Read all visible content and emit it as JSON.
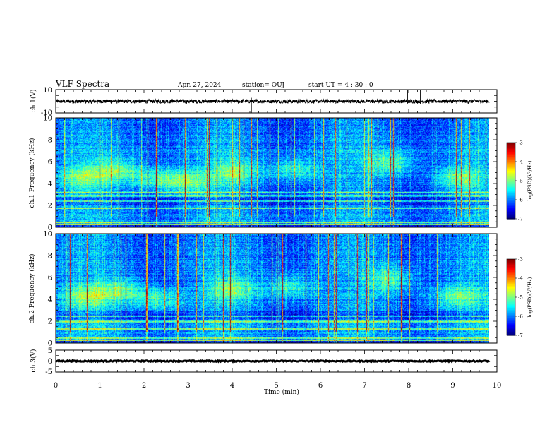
{
  "header": {
    "title": "VLF Spectra",
    "date": "Apr. 27, 2024",
    "station": "station= OUJ",
    "start": "start  UT =   4 : 30 : 0"
  },
  "chart_data": [
    {
      "type": "line",
      "name": "ch1-waveform",
      "ylabel": "ch.1(V)",
      "ylim": [
        -10,
        10
      ],
      "y_tick_labels": [
        "10",
        "-10"
      ],
      "baseline": 0,
      "noise_amplitude": 1.6,
      "spikes": [
        {
          "x": 4.43,
          "y_top": 3,
          "y_bottom": -10
        },
        {
          "x": 7.97,
          "y_top": 10,
          "y_bottom": -2
        },
        {
          "x": 8.27,
          "y_top": 10,
          "y_bottom": -2
        }
      ],
      "xlim": [
        0,
        9.83
      ]
    },
    {
      "type": "heatmap",
      "name": "ch1-spectrogram",
      "ylabel": "ch.1\nFrequency (kHz)",
      "ylim": [
        0,
        10
      ],
      "y_ticks": [
        0,
        2,
        4,
        6,
        8,
        10
      ],
      "xlim": [
        0,
        9.83
      ],
      "colorbar": {
        "label": "log(PSD)(V²/Hz)",
        "range": [
          -7,
          -3
        ],
        "ticks": [
          "-3",
          "-4",
          "-5",
          "-6",
          "-7"
        ]
      },
      "emission_bursts": [
        {
          "t": 0.6,
          "f": 4.6
        },
        {
          "t": 1.4,
          "f": 5.2
        },
        {
          "t": 2.3,
          "f": 4.4
        },
        {
          "t": 3.0,
          "f": 4.2
        },
        {
          "t": 4.1,
          "f": 5.1
        },
        {
          "t": 5.4,
          "f": 5.3
        },
        {
          "t": 7.6,
          "f": 5.9
        },
        {
          "t": 9.1,
          "f": 4.5
        }
      ],
      "lines_khz": [
        0.3,
        0.5,
        1.8,
        2.4,
        2.9,
        3.2
      ]
    },
    {
      "type": "heatmap",
      "name": "ch2-spectrogram",
      "ylabel": "ch.2\nFrequency (kHz)",
      "ylim": [
        0,
        10
      ],
      "y_ticks": [
        0,
        2,
        4,
        6,
        8,
        10
      ],
      "xlim": [
        0,
        9.83
      ],
      "colorbar": {
        "label": "log(PSD)(V²/Hz)",
        "range": [
          -7,
          -3
        ],
        "ticks": [
          "-3",
          "-4",
          "-5",
          "-6",
          "-7"
        ]
      },
      "emission_bursts": [
        {
          "t": 0.7,
          "f": 4.3
        },
        {
          "t": 1.5,
          "f": 4.9
        },
        {
          "t": 2.3,
          "f": 4.0
        },
        {
          "t": 4.0,
          "f": 5.0
        },
        {
          "t": 5.3,
          "f": 5.2
        },
        {
          "t": 7.6,
          "f": 5.8
        },
        {
          "t": 9.1,
          "f": 4.3
        }
      ],
      "lines_khz": [
        0.3,
        0.5,
        1.3,
        2.0,
        2.5
      ]
    },
    {
      "type": "line",
      "name": "ch3-waveform",
      "ylabel": "ch.3(V)",
      "ylim": [
        -5,
        5
      ],
      "y_tick_labels": [
        "5",
        "0",
        "-5"
      ],
      "baseline": 0,
      "noise_amplitude": 0.25,
      "xlim": [
        0,
        9.83
      ]
    }
  ],
  "x_axis": {
    "label": "Time (min)",
    "range": [
      0,
      10
    ],
    "ticks": [
      "0",
      "1",
      "2",
      "3",
      "4",
      "5",
      "6",
      "7",
      "8",
      "9",
      "10"
    ]
  },
  "colors": {
    "spectrum_low": "#00007f",
    "spectrum_high": "#ff0000"
  }
}
